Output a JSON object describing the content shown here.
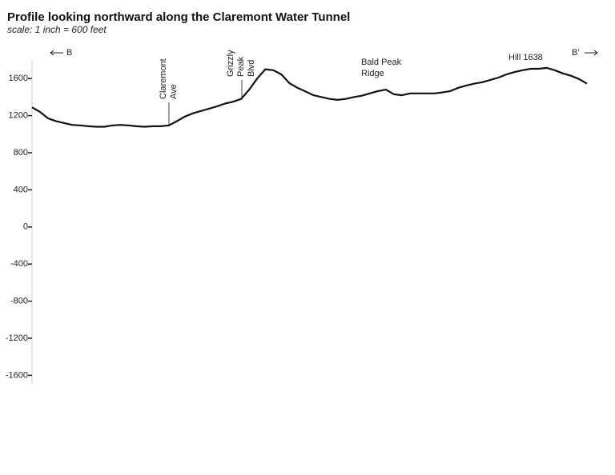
{
  "chart_data": {
    "type": "line",
    "title": "Profile looking northward along the Claremont Water Tunnel",
    "subtitle": "scale:  1 inch = 600 feet",
    "ylim": [
      -1700,
      1800
    ],
    "yticks": [
      1600,
      1200,
      800,
      400,
      0,
      -400,
      -800,
      -1200,
      -1600
    ],
    "color": "#111111",
    "values": [
      1290,
      1240,
      1170,
      1140,
      1120,
      1100,
      1095,
      1085,
      1080,
      1080,
      1095,
      1100,
      1095,
      1085,
      1080,
      1085,
      1085,
      1095,
      1140,
      1190,
      1225,
      1250,
      1275,
      1300,
      1330,
      1350,
      1380,
      1480,
      1600,
      1700,
      1690,
      1645,
      1550,
      1500,
      1460,
      1420,
      1400,
      1380,
      1370,
      1380,
      1400,
      1415,
      1440,
      1465,
      1480,
      1430,
      1420,
      1440,
      1440,
      1440,
      1440,
      1450,
      1465,
      1500,
      1525,
      1545,
      1560,
      1585,
      1610,
      1645,
      1670,
      1690,
      1705,
      1705,
      1715,
      1690,
      1655,
      1630,
      1595,
      1545
    ],
    "annotations": {
      "left_end": "B",
      "right_end": "B’",
      "claremont": [
        "Claremont",
        "Ave"
      ],
      "grizzly": [
        "Grizzly",
        "Peak",
        "Blvd"
      ],
      "bald_peak": [
        "Bald Peak",
        "Ridge"
      ],
      "hill": "Hill 1638"
    }
  }
}
